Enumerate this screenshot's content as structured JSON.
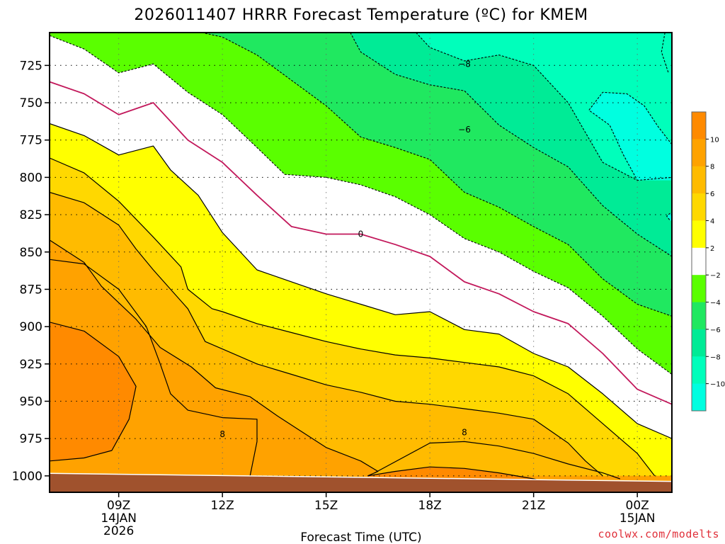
{
  "chart_data": {
    "type": "contour",
    "title": "2026011407 HRRR Forecast Temperature (ºC) for KMEM",
    "xlabel": "Forecast Time (UTC)",
    "ylabel": "",
    "credit": "coolwx.com/modelts",
    "x_ticks": [
      {
        "hour": 9,
        "lines": [
          "09Z",
          "14JAN",
          "2026"
        ]
      },
      {
        "hour": 12,
        "lines": [
          "12Z"
        ]
      },
      {
        "hour": 15,
        "lines": [
          "15Z"
        ]
      },
      {
        "hour": 18,
        "lines": [
          "18Z"
        ]
      },
      {
        "hour": 21,
        "lines": [
          "21Z"
        ]
      },
      {
        "hour": 24,
        "lines": [
          "00Z",
          "15JAN"
        ]
      }
    ],
    "y_ticks": [
      "725",
      "750",
      "775",
      "800",
      "825",
      "850",
      "875",
      "900",
      "925",
      "950",
      "975",
      "1000"
    ],
    "xlim_hours": [
      7,
      25
    ],
    "ylim_hPa": [
      1011,
      703
    ],
    "grid": true,
    "colorbar": {
      "labels": [
        "10",
        "8",
        "6",
        "4",
        "2",
        "−2",
        "−4",
        "−6",
        "−8",
        "−10"
      ],
      "bands": [
        {
          "range": [
            10,
            12
          ],
          "color": "#ff8a00"
        },
        {
          "range": [
            8,
            10
          ],
          "color": "#ffa200"
        },
        {
          "range": [
            6,
            8
          ],
          "color": "#ffbb00"
        },
        {
          "range": [
            4,
            6
          ],
          "color": "#ffd800"
        },
        {
          "range": [
            2,
            4
          ],
          "color": "#ffff00"
        },
        {
          "range": [
            -2,
            2
          ],
          "color": "#ffffff"
        },
        {
          "range": [
            -4,
            -2
          ],
          "color": "#5aff00"
        },
        {
          "range": [
            -6,
            -4
          ],
          "color": "#20e860"
        },
        {
          "range": [
            -8,
            -6
          ],
          "color": "#00eb96"
        },
        {
          "range": [
            -10,
            -8
          ],
          "color": "#00ffbb"
        },
        {
          "range": [
            -12,
            -10
          ],
          "color": "#00ffe0"
        }
      ]
    },
    "contour_labels": [
      {
        "text": "−8",
        "hour": 19.0,
        "hPa": 724
      },
      {
        "text": "−6",
        "hour": 19.0,
        "hPa": 768
      },
      {
        "text": "0",
        "hour": 16.0,
        "hPa": 838
      },
      {
        "text": "8",
        "hour": 12.0,
        "hPa": 972
      },
      {
        "text": "8",
        "hour": 19.0,
        "hPa": 971
      }
    ],
    "isotherms": [
      {
        "value": 10,
        "style": "solid",
        "points": [
          [
            7,
            897
          ],
          [
            8,
            903
          ],
          [
            9,
            920
          ],
          [
            9.5,
            940
          ],
          [
            9.3,
            962
          ],
          [
            8.8,
            983
          ],
          [
            8,
            988
          ],
          [
            7,
            990
          ]
        ]
      },
      {
        "value": 10,
        "style": "solid",
        "points": [
          [
            16.2,
            1000
          ],
          [
            17,
            997
          ],
          [
            18,
            994
          ],
          [
            19,
            995
          ],
          [
            20,
            998
          ],
          [
            21,
            1002
          ],
          [
            21.5,
            1005
          ]
        ]
      },
      {
        "value": 8,
        "style": "solid",
        "points": [
          [
            7,
            842
          ],
          [
            8,
            857
          ],
          [
            8.5,
            873
          ],
          [
            9.5,
            895
          ],
          [
            10.2,
            914
          ],
          [
            11.1,
            927
          ],
          [
            11.8,
            941
          ],
          [
            12.8,
            947
          ],
          [
            13.6,
            960
          ],
          [
            14.2,
            969
          ],
          [
            15,
            981
          ],
          [
            16,
            990
          ],
          [
            16.5,
            997
          ],
          [
            16.2,
            1000
          ]
        ]
      },
      {
        "value": 8,
        "style": "solid",
        "points": [
          [
            7,
            855
          ],
          [
            8,
            858
          ],
          [
            9,
            875
          ],
          [
            9.8,
            900
          ],
          [
            10.2,
            925
          ],
          [
            10.5,
            945
          ],
          [
            11,
            956
          ],
          [
            12,
            961
          ],
          [
            13,
            962
          ],
          [
            13,
            977
          ],
          [
            12.8,
            1000
          ]
        ]
      },
      {
        "value": 8,
        "style": "solid",
        "points": [
          [
            16.4,
            998
          ],
          [
            18,
            978
          ],
          [
            19,
            977
          ],
          [
            20,
            980
          ],
          [
            21,
            985
          ],
          [
            22,
            992
          ],
          [
            23,
            998
          ],
          [
            23.5,
            1002
          ]
        ]
      },
      {
        "value": 6,
        "style": "solid",
        "points": [
          [
            7,
            810
          ],
          [
            8,
            817
          ],
          [
            9,
            832
          ],
          [
            9.5,
            848
          ],
          [
            10,
            862
          ],
          [
            11,
            888
          ],
          [
            11.5,
            910
          ],
          [
            12,
            915
          ],
          [
            13,
            925
          ],
          [
            14,
            932
          ],
          [
            15,
            939
          ],
          [
            16,
            944
          ],
          [
            17,
            950
          ],
          [
            18,
            952
          ],
          [
            19,
            955
          ],
          [
            20,
            958
          ],
          [
            21,
            962
          ],
          [
            22,
            978
          ],
          [
            22.5,
            990
          ],
          [
            23,
            1000
          ]
        ]
      },
      {
        "value": 4,
        "style": "solid",
        "points": [
          [
            7,
            787
          ],
          [
            8,
            797
          ],
          [
            9,
            816
          ],
          [
            10,
            840
          ],
          [
            10.8,
            860
          ],
          [
            11,
            875
          ],
          [
            11.7,
            888
          ],
          [
            12,
            890
          ],
          [
            13,
            898
          ],
          [
            14,
            904
          ],
          [
            15,
            910
          ],
          [
            16,
            915
          ],
          [
            17,
            919
          ],
          [
            18,
            921
          ],
          [
            19,
            924
          ],
          [
            20,
            927
          ],
          [
            21,
            933
          ],
          [
            22,
            945
          ],
          [
            23,
            965
          ],
          [
            24,
            985
          ],
          [
            24.5,
            1000
          ]
        ]
      },
      {
        "value": 2,
        "style": "solid",
        "points": [
          [
            7,
            764
          ],
          [
            8,
            772
          ],
          [
            9,
            785
          ],
          [
            10,
            779
          ],
          [
            10.5,
            795
          ],
          [
            11.3,
            812
          ],
          [
            12,
            837
          ],
          [
            13,
            862
          ],
          [
            14,
            870
          ],
          [
            15,
            878
          ],
          [
            16,
            885
          ],
          [
            17,
            892
          ],
          [
            18,
            890
          ],
          [
            19,
            902
          ],
          [
            20,
            905
          ],
          [
            21,
            918
          ],
          [
            22,
            927
          ],
          [
            23,
            945
          ],
          [
            24,
            965
          ],
          [
            25,
            975
          ]
        ]
      },
      {
        "value": 0,
        "style": "magenta",
        "points": [
          [
            7,
            736
          ],
          [
            8,
            744
          ],
          [
            9,
            758
          ],
          [
            10,
            750
          ],
          [
            11,
            775
          ],
          [
            12,
            790
          ],
          [
            13,
            812
          ],
          [
            14,
            833
          ],
          [
            15,
            838
          ],
          [
            16,
            838
          ],
          [
            17,
            845
          ],
          [
            18,
            853
          ],
          [
            19,
            870
          ],
          [
            20,
            878
          ],
          [
            21,
            890
          ],
          [
            22,
            898
          ],
          [
            23,
            918
          ],
          [
            24,
            942
          ],
          [
            25,
            952
          ]
        ]
      },
      {
        "value": -2,
        "style": "dashed",
        "points": [
          [
            7,
            705
          ],
          [
            8,
            714
          ],
          [
            9,
            730
          ],
          [
            10,
            724
          ],
          [
            11,
            743
          ],
          [
            12,
            758
          ],
          [
            13,
            780
          ],
          [
            13.8,
            798
          ],
          [
            15,
            800
          ],
          [
            16,
            805
          ],
          [
            17,
            813
          ],
          [
            18,
            825
          ],
          [
            19,
            841
          ],
          [
            20,
            850
          ],
          [
            21,
            863
          ],
          [
            22,
            874
          ],
          [
            23,
            893
          ],
          [
            24,
            915
          ],
          [
            25,
            932
          ]
        ]
      },
      {
        "value": -4,
        "style": "dashed",
        "points": [
          [
            11.4,
            703
          ],
          [
            12,
            706
          ],
          [
            13,
            718
          ],
          [
            14,
            735
          ],
          [
            15,
            752
          ],
          [
            16,
            773
          ],
          [
            17,
            780
          ],
          [
            18,
            788
          ],
          [
            19,
            810
          ],
          [
            20,
            820
          ],
          [
            21,
            833
          ],
          [
            22,
            845
          ],
          [
            23,
            868
          ],
          [
            24,
            885
          ],
          [
            25,
            893
          ]
        ]
      },
      {
        "value": -6,
        "style": "dashed",
        "points": [
          [
            15.7,
            703
          ],
          [
            16,
            716
          ],
          [
            17,
            731
          ],
          [
            18,
            738
          ],
          [
            19,
            742
          ],
          [
            20,
            765
          ],
          [
            21,
            780
          ],
          [
            22,
            793
          ],
          [
            23,
            819
          ],
          [
            24,
            838
          ],
          [
            25,
            853
          ]
        ]
      },
      {
        "value": -8,
        "style": "dashed",
        "points": [
          [
            17.6,
            703
          ],
          [
            18,
            713
          ],
          [
            19,
            722
          ],
          [
            20,
            718
          ],
          [
            21,
            725
          ],
          [
            22,
            750
          ],
          [
            23,
            790
          ],
          [
            24,
            802
          ],
          [
            25,
            800
          ]
        ]
      },
      {
        "value": -8,
        "style": "dashed",
        "points": [
          [
            24.8,
            703
          ],
          [
            24.7,
            716
          ],
          [
            24.9,
            730
          ]
        ]
      },
      {
        "value": -10,
        "style": "dashed",
        "points": [
          [
            25,
            778
          ],
          [
            24.6,
            766
          ],
          [
            24.2,
            752
          ],
          [
            23.7,
            744
          ],
          [
            23,
            743
          ],
          [
            22.6,
            755
          ],
          [
            23.2,
            765
          ],
          [
            23.6,
            785
          ],
          [
            24,
            802
          ]
        ]
      },
      {
        "value": -10,
        "style": "dashed",
        "points": [
          [
            24.95,
            824
          ],
          [
            24.85,
            826
          ],
          [
            24.95,
            829
          ]
        ]
      }
    ],
    "surface_ground": {
      "color": "#a0522d",
      "top_hPa_left": 998,
      "top_hPa_right": 1004
    }
  }
}
